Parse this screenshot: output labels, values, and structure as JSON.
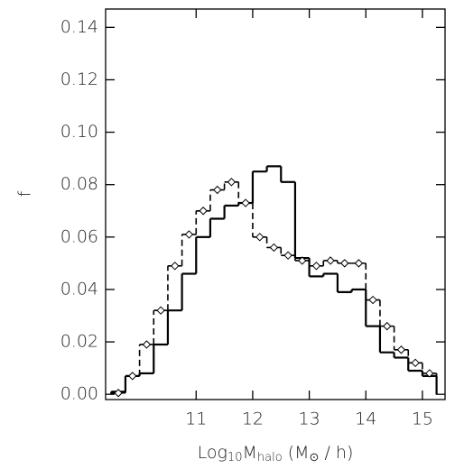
{
  "chart_data": {
    "type": "histogram",
    "xlabel": [
      {
        "text": "Log"
      },
      {
        "text": "10",
        "sub": true
      },
      {
        "text": "M"
      },
      {
        "text": "halo",
        "sub": true
      },
      {
        "text": " (M"
      },
      {
        "text": "⊙",
        "sub": true
      },
      {
        "text": " / h)"
      }
    ],
    "ylabel": "f",
    "bins": [
      9.5,
      9.75,
      10.0,
      10.25,
      10.5,
      10.75,
      11.0,
      11.25,
      11.5,
      11.75,
      12.0,
      12.25,
      12.5,
      12.75,
      13.0,
      13.25,
      13.5,
      13.75,
      14.0,
      14.25,
      14.5,
      14.75,
      15.0,
      15.25
    ],
    "series": [
      {
        "color": "#000000",
        "style": "solid",
        "marker": "none",
        "values": [
          0.001,
          0.007,
          0.008,
          0.019,
          0.032,
          0.046,
          0.06,
          0.067,
          0.072,
          0.073,
          0.085,
          0.087,
          0.081,
          0.052,
          0.045,
          0.046,
          0.039,
          0.04,
          0.026,
          0.016,
          0.014,
          0.009,
          0.007
        ]
      },
      {
        "color": "#000000",
        "style": "dashed",
        "marker": "diamond",
        "values": [
          0.0005,
          0.007,
          0.019,
          0.032,
          0.049,
          0.061,
          0.07,
          0.078,
          0.081,
          0.073,
          0.06,
          0.056,
          0.053,
          0.051,
          0.049,
          0.051,
          0.05,
          0.05,
          0.036,
          0.026,
          0.017,
          0.012,
          0.008
        ]
      }
    ],
    "xlim": [
      9.4,
      15.4
    ],
    "ylim": [
      -0.002,
      0.147
    ],
    "xticks": [
      11,
      12,
      13,
      14,
      15
    ],
    "yticks": [
      {
        "value": 0,
        "label": "0.00"
      },
      {
        "value": 0.02,
        "label": "0.02"
      },
      {
        "value": 0.04,
        "label": "0.04"
      },
      {
        "value": 0.06,
        "label": "0.06"
      },
      {
        "value": 0.08,
        "label": "0.08"
      },
      {
        "value": 0.1,
        "label": "0.10"
      },
      {
        "value": 0.12,
        "label": "0.12"
      },
      {
        "value": 0.14,
        "label": "0.14"
      }
    ]
  }
}
